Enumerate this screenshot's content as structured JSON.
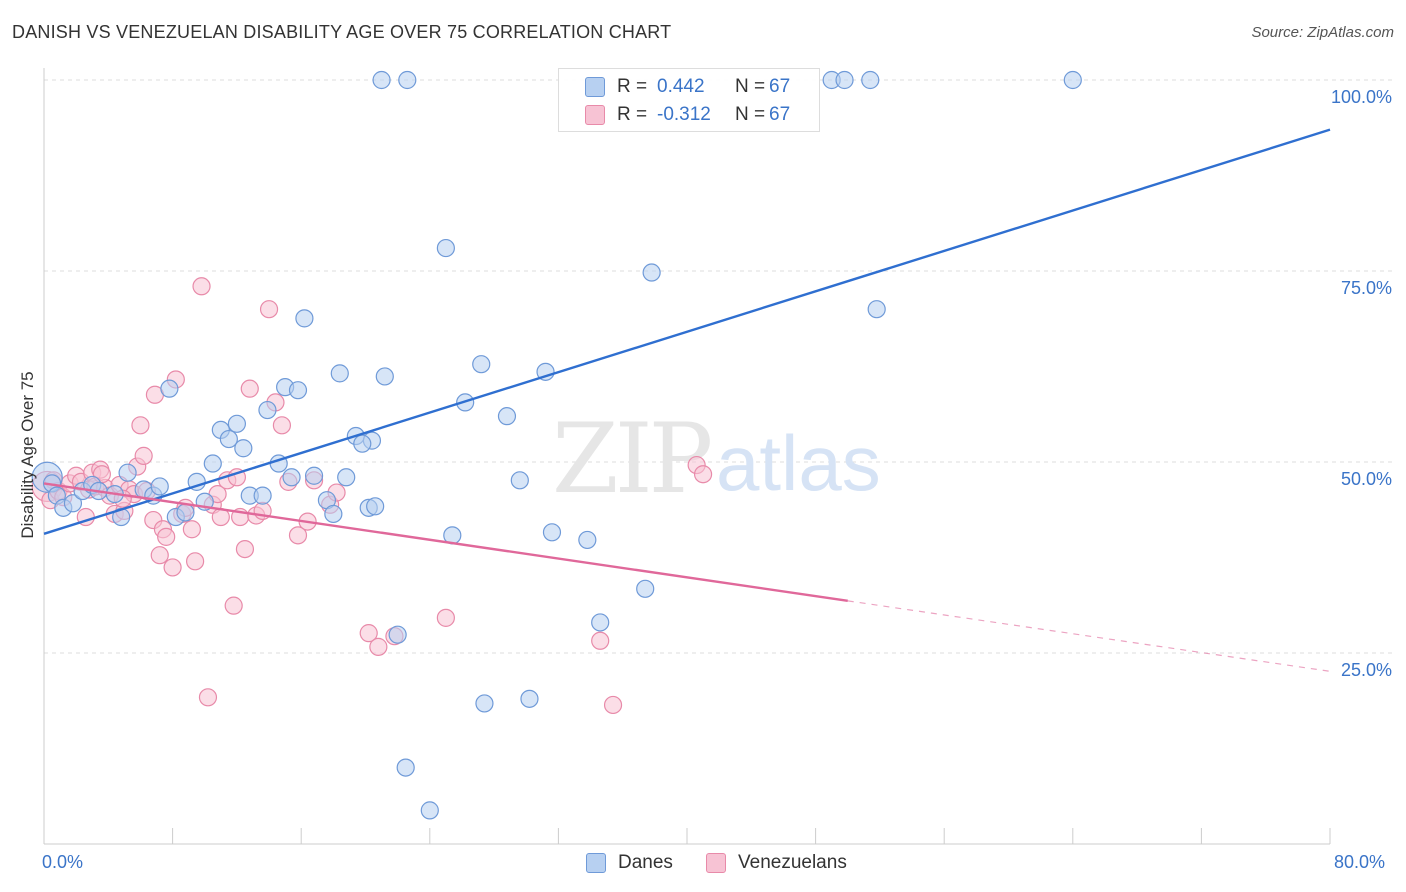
{
  "title": "DANISH VS VENEZUELAN DISABILITY AGE OVER 75 CORRELATION CHART",
  "source": "Source: ZipAtlas.com",
  "watermark": {
    "zip": "ZIP",
    "atlas": "atlas"
  },
  "legend": {
    "rows": [
      {
        "r_label": "R =",
        "r_value": "0.442",
        "n_label": "N =",
        "n_value": "67"
      },
      {
        "r_label": "R =",
        "r_value": "-0.312",
        "n_label": "N =",
        "n_value": "67"
      }
    ]
  },
  "colors": {
    "danes_fill": "#b7d0f1",
    "danes_stroke": "#6f9ad8",
    "danes_line": "#2f6fd0",
    "venezuelans_fill": "#f7c3d4",
    "venezuelans_stroke": "#e88aa9",
    "venezuelans_line": "#e0689a",
    "axis_text": "#3a74c8",
    "grid": "#dddddd"
  },
  "chart_data": {
    "type": "scatter",
    "xlabel": "",
    "ylabel": "Disability Age Over 75",
    "xlim": [
      0,
      80
    ],
    "ylim": [
      0,
      100
    ],
    "x_tick_labels": [
      "0.0%",
      "80.0%"
    ],
    "y_tick_labels": [
      "100.0%",
      "75.0%",
      "50.0%",
      "25.0%"
    ],
    "y_ticks": [
      100,
      75,
      50,
      25
    ],
    "grid": true,
    "legend_position": "top-center",
    "series": [
      {
        "name": "Danes",
        "r": 0.442,
        "n": 67,
        "trend": {
          "x": [
            0,
            80
          ],
          "y": [
            40.6,
            93.5
          ],
          "dashed_from": null
        },
        "points": [
          [
            0.2,
            48.0
          ],
          [
            0.5,
            47.2
          ],
          [
            0.8,
            45.6
          ],
          [
            1.2,
            44.0
          ],
          [
            1.8,
            44.6
          ],
          [
            2.4,
            46.2
          ],
          [
            3.0,
            47.0
          ],
          [
            3.4,
            46.2
          ],
          [
            4.4,
            45.8
          ],
          [
            4.8,
            42.8
          ],
          [
            5.2,
            48.6
          ],
          [
            6.2,
            46.4
          ],
          [
            6.8,
            45.6
          ],
          [
            7.2,
            46.8
          ],
          [
            7.8,
            59.6
          ],
          [
            8.2,
            42.8
          ],
          [
            8.8,
            43.4
          ],
          [
            9.5,
            47.4
          ],
          [
            10.0,
            44.8
          ],
          [
            10.5,
            49.8
          ],
          [
            11.0,
            54.2
          ],
          [
            11.5,
            53.0
          ],
          [
            12.0,
            55.0
          ],
          [
            12.4,
            51.8
          ],
          [
            12.8,
            45.6
          ],
          [
            13.6,
            45.6
          ],
          [
            13.9,
            56.8
          ],
          [
            14.6,
            49.8
          ],
          [
            15.0,
            59.8
          ],
          [
            15.4,
            48.0
          ],
          [
            15.8,
            59.4
          ],
          [
            16.2,
            68.8
          ],
          [
            16.8,
            48.2
          ],
          [
            17.6,
            45.0
          ],
          [
            18.0,
            43.2
          ],
          [
            18.4,
            61.6
          ],
          [
            18.8,
            48.0
          ],
          [
            19.4,
            53.4
          ],
          [
            20.2,
            44.0
          ],
          [
            20.4,
            52.8
          ],
          [
            21.0,
            100.0
          ],
          [
            21.2,
            61.2
          ],
          [
            22.0,
            27.4
          ],
          [
            22.5,
            10.0
          ],
          [
            22.6,
            100.0
          ],
          [
            24.0,
            4.4
          ],
          [
            25.0,
            78.0
          ],
          [
            25.4,
            40.4
          ],
          [
            26.2,
            57.8
          ],
          [
            27.2,
            62.8
          ],
          [
            27.4,
            18.4
          ],
          [
            28.8,
            56.0
          ],
          [
            29.6,
            47.6
          ],
          [
            30.2,
            19.0
          ],
          [
            31.2,
            61.8
          ],
          [
            31.6,
            40.8
          ],
          [
            33.8,
            39.8
          ],
          [
            34.6,
            29.0
          ],
          [
            37.4,
            33.4
          ],
          [
            37.8,
            74.8
          ],
          [
            49.0,
            100.0
          ],
          [
            49.8,
            100.0
          ],
          [
            51.4,
            100.0
          ],
          [
            51.8,
            70.0
          ],
          [
            64.0,
            100.0
          ],
          [
            19.8,
            52.4
          ],
          [
            20.6,
            44.2
          ]
        ]
      },
      {
        "name": "Venezuelans",
        "r": -0.312,
        "n": 67,
        "trend": {
          "x": [
            0,
            80
          ],
          "y": [
            47.2,
            22.6
          ],
          "dashed_from": 50
        },
        "points": [
          [
            0.2,
            46.8
          ],
          [
            0.4,
            45.0
          ],
          [
            0.6,
            47.6
          ],
          [
            0.9,
            46.2
          ],
          [
            1.2,
            45.4
          ],
          [
            1.6,
            47.2
          ],
          [
            2.0,
            48.2
          ],
          [
            2.3,
            47.4
          ],
          [
            2.6,
            42.8
          ],
          [
            2.8,
            46.4
          ],
          [
            3.0,
            48.6
          ],
          [
            3.2,
            46.8
          ],
          [
            3.5,
            49.0
          ],
          [
            3.8,
            46.6
          ],
          [
            4.1,
            45.6
          ],
          [
            4.4,
            43.2
          ],
          [
            4.7,
            47.0
          ],
          [
            5.0,
            43.6
          ],
          [
            5.3,
            46.4
          ],
          [
            5.6,
            45.8
          ],
          [
            5.8,
            49.4
          ],
          [
            6.0,
            54.8
          ],
          [
            6.2,
            50.8
          ],
          [
            6.4,
            46.2
          ],
          [
            6.8,
            42.4
          ],
          [
            6.9,
            58.8
          ],
          [
            7.2,
            37.8
          ],
          [
            7.4,
            41.2
          ],
          [
            7.6,
            40.2
          ],
          [
            8.0,
            36.2
          ],
          [
            8.2,
            60.8
          ],
          [
            8.6,
            43.2
          ],
          [
            8.8,
            44.0
          ],
          [
            9.2,
            41.2
          ],
          [
            9.4,
            37.0
          ],
          [
            9.8,
            73.0
          ],
          [
            10.2,
            19.2
          ],
          [
            10.5,
            44.4
          ],
          [
            10.8,
            45.8
          ],
          [
            11.0,
            42.8
          ],
          [
            11.4,
            47.6
          ],
          [
            11.8,
            31.2
          ],
          [
            12.2,
            42.8
          ],
          [
            12.5,
            38.6
          ],
          [
            12.8,
            59.6
          ],
          [
            13.2,
            43.0
          ],
          [
            13.6,
            43.6
          ],
          [
            14.0,
            70.0
          ],
          [
            14.4,
            57.8
          ],
          [
            14.8,
            54.8
          ],
          [
            15.2,
            47.4
          ],
          [
            15.8,
            40.4
          ],
          [
            16.4,
            42.2
          ],
          [
            16.8,
            47.6
          ],
          [
            17.8,
            44.4
          ],
          [
            18.2,
            46.0
          ],
          [
            20.2,
            27.6
          ],
          [
            21.8,
            27.2
          ],
          [
            25.0,
            29.6
          ],
          [
            34.6,
            26.6
          ],
          [
            35.4,
            18.2
          ],
          [
            40.6,
            49.6
          ],
          [
            41.0,
            48.4
          ],
          [
            12.0,
            48.0
          ],
          [
            4.9,
            45.2
          ],
          [
            3.6,
            48.4
          ],
          [
            20.8,
            25.8
          ]
        ]
      }
    ]
  }
}
